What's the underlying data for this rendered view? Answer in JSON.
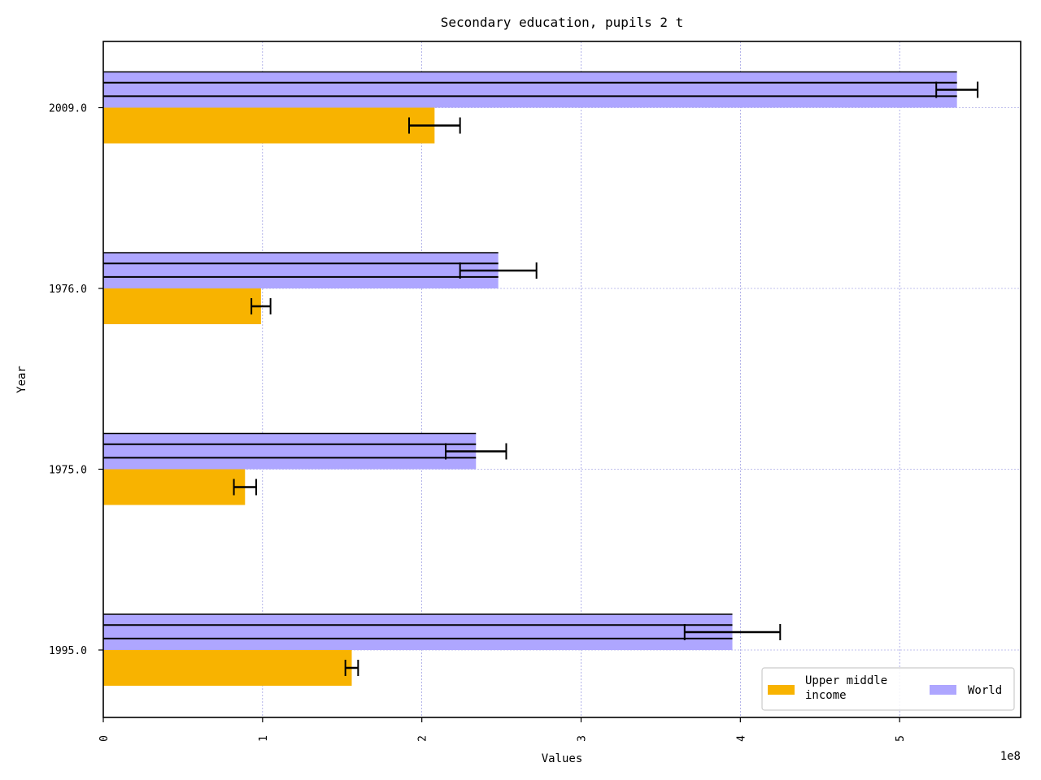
{
  "chart_data": {
    "type": "bar",
    "orientation": "horizontal",
    "title": "Secondary education, pupils 2 t",
    "xlabel": "Values",
    "ylabel": "Year",
    "x_offset_label": "1e8",
    "xlim": [
      0,
      5.76
    ],
    "x_ticks": [
      0,
      1,
      2,
      3,
      4,
      5
    ],
    "x_tick_labels": [
      "0",
      "1",
      "2",
      "3",
      "4",
      "5"
    ],
    "categories": [
      "1995.0",
      "1975.0",
      "1976.0",
      "2009.0"
    ],
    "series": [
      {
        "name": "Upper middle\nincome",
        "color": "#f8b300",
        "values": [
          1.56,
          0.89,
          0.99,
          2.08
        ],
        "errors": [
          0.04,
          0.07,
          0.06,
          0.16
        ]
      },
      {
        "name": "World",
        "color": "#aea6ff",
        "values": [
          3.95,
          2.34,
          2.48,
          5.36
        ],
        "errors": [
          0.3,
          0.19,
          0.24,
          0.13
        ],
        "hatch": "horizontal-lines"
      }
    ],
    "grid": true,
    "legend_position": "lower-right"
  }
}
